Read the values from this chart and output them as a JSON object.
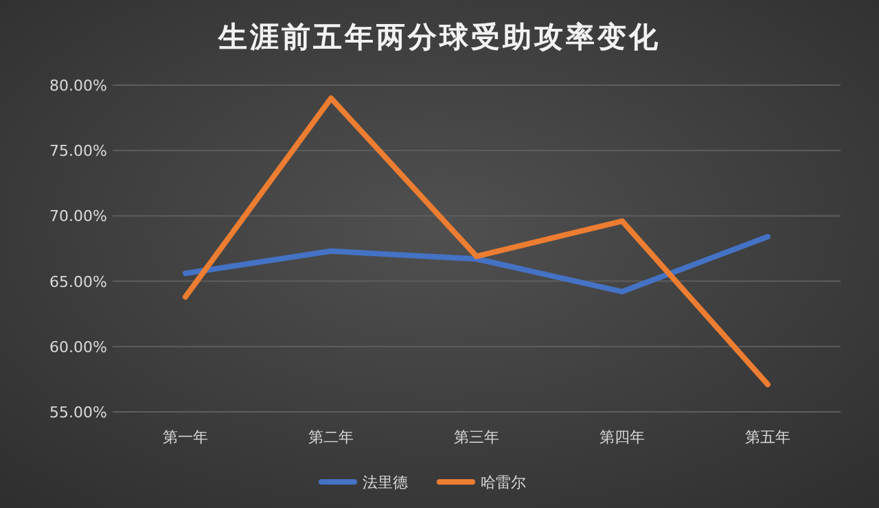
{
  "chart_data": {
    "type": "line",
    "title": "生涯前五年两分球受助攻率变化",
    "categories": [
      "第一年",
      "第二年",
      "第三年",
      "第四年",
      "第五年"
    ],
    "series": [
      {
        "name": "法里德",
        "color": "#4472c4",
        "values": [
          65.6,
          67.3,
          66.7,
          64.2,
          68.4
        ]
      },
      {
        "name": "哈雷尔",
        "color": "#ed7d31",
        "values": [
          63.8,
          79.0,
          66.9,
          69.6,
          57.1
        ]
      }
    ],
    "ylim": [
      55,
      80
    ],
    "yticks": [
      {
        "value": 55,
        "label": "55.00%"
      },
      {
        "value": 60,
        "label": "60.00%"
      },
      {
        "value": 65,
        "label": "65.00%"
      },
      {
        "value": 70,
        "label": "70.00%"
      },
      {
        "value": 75,
        "label": "75.00%"
      },
      {
        "value": 80,
        "label": "80.00%"
      }
    ],
    "grid": "y",
    "legend": "bottom",
    "marker": "none",
    "line_style": "solid"
  }
}
